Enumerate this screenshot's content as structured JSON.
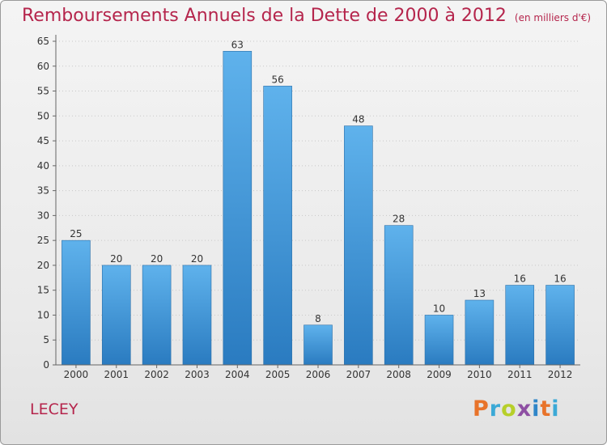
{
  "title": "Remboursements Annuels de la Dette de 2000 à 2012",
  "unit": "(en milliers d'€)",
  "commune": "LECEY",
  "logo": {
    "text": "Proxiti",
    "colors": [
      "#e8732a",
      "#3ba9d6",
      "#b7cf2a",
      "#8e4fa3",
      "#2f86c8",
      "#e8732a",
      "#3ba9d6"
    ]
  },
  "colors": {
    "title": "#b5254c",
    "bar_top": "#5fb2ec",
    "bar_bottom": "#2a7bc0"
  },
  "chart_data": {
    "type": "bar",
    "categories": [
      "2000",
      "2001",
      "2002",
      "2003",
      "2004",
      "2005",
      "2006",
      "2007",
      "2008",
      "2009",
      "2010",
      "2011",
      "2012"
    ],
    "values": [
      25,
      20,
      20,
      20,
      63,
      56,
      8,
      48,
      28,
      10,
      13,
      16,
      16
    ],
    "value_labels": [
      "25",
      "20",
      "20",
      "20",
      "63",
      "56",
      "8",
      "48",
      "28",
      "10",
      "13",
      "16",
      "16"
    ],
    "ylim": [
      0,
      65
    ],
    "yticks": [
      "0",
      "5",
      "10",
      "15",
      "20",
      "25",
      "30",
      "35",
      "40",
      "45",
      "50",
      "55",
      "60",
      "65"
    ],
    "grid": true
  }
}
